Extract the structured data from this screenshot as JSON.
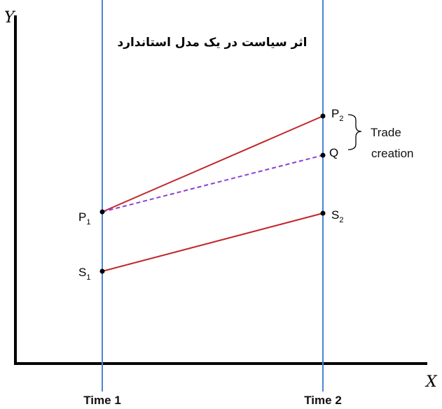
{
  "title": "اثر سیاست در یک مدل استاندارد",
  "axes": {
    "y_label": "Y",
    "x_label": "X"
  },
  "time_labels": [
    "Time 1",
    "Time 2"
  ],
  "points": [
    {
      "letter": "P",
      "sub": "1"
    },
    {
      "letter": "P",
      "sub": "2"
    },
    {
      "letter": "Q",
      "sub": ""
    },
    {
      "letter": "S",
      "sub": "1"
    },
    {
      "letter": "S",
      "sub": "2"
    }
  ],
  "annotation": {
    "line1": "Trade",
    "line2": "creation"
  },
  "colors": {
    "time_line": "#4a86d4",
    "solid_line": "#c0262b",
    "dashed_line": "#8a3fd6",
    "axis": "#000000"
  }
}
